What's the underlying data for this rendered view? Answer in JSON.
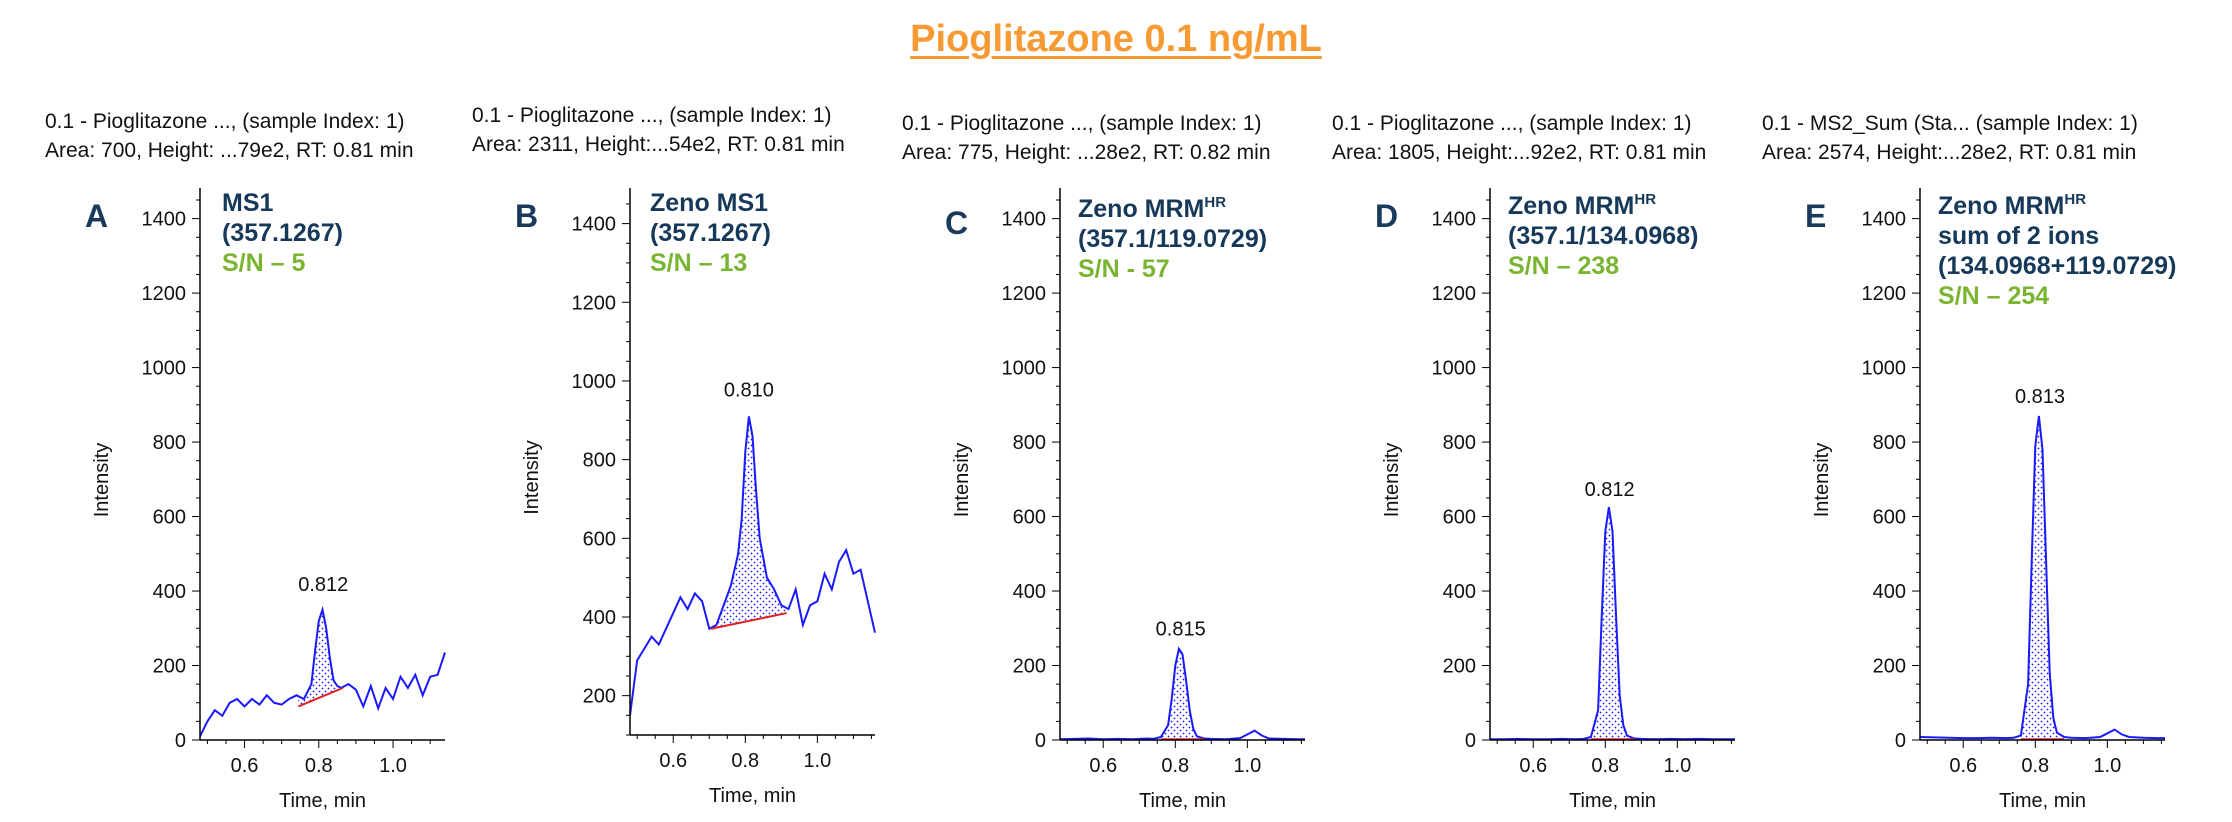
{
  "title": "Pioglitazone 0.1 ng/mL",
  "chart_data": [
    {
      "type": "line",
      "panel_letter": "A",
      "header": [
        "0.1 - Pioglitazone ..., (sample Index: 1)",
        "Area: 700, Height: ...79e2, RT: 0.81 min"
      ],
      "annotation": [
        {
          "text": "MS1"
        },
        {
          "text": "(357.1267)"
        }
      ],
      "sn": "S/N – 5",
      "xlabel": "Time, min",
      "ylabel": "Intensity",
      "xlim": [
        0.48,
        1.14
      ],
      "ylim": [
        0,
        1450
      ],
      "xticks": [
        0.6,
        0.8,
        1.0
      ],
      "xtick_labels": [
        "0.6",
        "0.8",
        "1.0"
      ],
      "yticks": [
        0,
        200,
        400,
        600,
        800,
        1000,
        1200,
        1400
      ],
      "ytick_labels": [
        "0",
        "200",
        "400",
        "600",
        "800",
        "1000",
        "1200",
        "1400"
      ],
      "peak_label": "0.812",
      "peak_label_x": 0.812,
      "peak_label_y": 400,
      "integration": {
        "start": [
          0.745,
          90
        ],
        "end": [
          0.865,
          140
        ]
      },
      "x": [
        0.48,
        0.5,
        0.52,
        0.54,
        0.56,
        0.58,
        0.6,
        0.62,
        0.64,
        0.66,
        0.68,
        0.7,
        0.72,
        0.74,
        0.76,
        0.78,
        0.79,
        0.8,
        0.81,
        0.82,
        0.83,
        0.84,
        0.85,
        0.86,
        0.88,
        0.9,
        0.92,
        0.94,
        0.96,
        0.98,
        1.0,
        1.02,
        1.04,
        1.06,
        1.08,
        1.1,
        1.12,
        1.14
      ],
      "y": [
        10,
        50,
        80,
        65,
        100,
        110,
        90,
        110,
        95,
        120,
        100,
        95,
        110,
        120,
        110,
        150,
        240,
        320,
        350,
        300,
        220,
        160,
        145,
        140,
        150,
        135,
        90,
        145,
        85,
        140,
        110,
        170,
        140,
        175,
        120,
        170,
        175,
        235
      ],
      "peak_fill_range": [
        0.745,
        0.865
      ]
    },
    {
      "type": "line",
      "panel_letter": "B",
      "header": [
        "0.1 - Pioglitazone ..., (sample Index: 1)",
        "Area: 2311, Height:...54e2, RT: 0.81 min"
      ],
      "annotation": [
        {
          "text": "Zeno MS1"
        },
        {
          "text": "(357.1267)"
        }
      ],
      "sn": "S/N – 13",
      "xlabel": "Time, min",
      "ylabel": "Intensity",
      "xlim": [
        0.48,
        1.16
      ],
      "ylim": [
        100,
        1460
      ],
      "xticks": [
        0.6,
        0.8,
        1.0
      ],
      "xtick_labels": [
        "0.6",
        "0.8",
        "1.0"
      ],
      "yticks": [
        200,
        400,
        600,
        800,
        1000,
        1200,
        1400
      ],
      "ytick_labels": [
        "200",
        "400",
        "600",
        "800",
        "1000",
        "1200",
        "1400"
      ],
      "peak_label": "0.810",
      "peak_label_x": 0.81,
      "peak_label_y": 960,
      "integration": {
        "start": [
          0.705,
          370
        ],
        "end": [
          0.915,
          410
        ]
      },
      "x": [
        0.48,
        0.5,
        0.52,
        0.54,
        0.56,
        0.58,
        0.6,
        0.62,
        0.64,
        0.66,
        0.68,
        0.7,
        0.72,
        0.74,
        0.76,
        0.78,
        0.79,
        0.8,
        0.81,
        0.82,
        0.83,
        0.84,
        0.86,
        0.88,
        0.9,
        0.92,
        0.94,
        0.96,
        0.98,
        1.0,
        1.02,
        1.04,
        1.06,
        1.08,
        1.1,
        1.12,
        1.14,
        1.16
      ],
      "y": [
        150,
        290,
        320,
        350,
        330,
        370,
        410,
        450,
        420,
        460,
        440,
        370,
        380,
        430,
        480,
        560,
        650,
        820,
        910,
        860,
        720,
        600,
        500,
        470,
        430,
        420,
        470,
        380,
        430,
        440,
        510,
        470,
        540,
        570,
        510,
        520,
        440,
        360
      ],
      "peak_fill_range": [
        0.705,
        0.915
      ]
    },
    {
      "type": "line",
      "panel_letter": "C",
      "header": [
        "0.1 - Pioglitazone ..., (sample Index: 1)",
        "Area: 775, Height: ...28e2, RT: 0.82 min"
      ],
      "annotation": [
        {
          "text": "Zeno MRM",
          "sup": "HR"
        },
        {
          "text": "(357.1/119.0729)"
        }
      ],
      "sn": "S/N - 57",
      "xlabel": "Time, min",
      "ylabel": "Intensity",
      "xlim": [
        0.48,
        1.16
      ],
      "ylim": [
        0,
        1450
      ],
      "xticks": [
        0.6,
        0.8,
        1.0
      ],
      "xtick_labels": [
        "0.6",
        "0.8",
        "1.0"
      ],
      "yticks": [
        0,
        200,
        400,
        600,
        800,
        1000,
        1200,
        1400
      ],
      "ytick_labels": [
        "0",
        "200",
        "400",
        "600",
        "800",
        "1000",
        "1200",
        "1400"
      ],
      "peak_label": "0.815",
      "peak_label_x": 0.815,
      "peak_label_y": 280,
      "integration": {
        "start": [
          0.76,
          2
        ],
        "end": [
          0.88,
          2
        ]
      },
      "x": [
        0.48,
        0.52,
        0.56,
        0.6,
        0.64,
        0.68,
        0.72,
        0.74,
        0.76,
        0.78,
        0.79,
        0.8,
        0.81,
        0.82,
        0.83,
        0.84,
        0.85,
        0.86,
        0.88,
        0.9,
        0.94,
        0.98,
        1.0,
        1.02,
        1.04,
        1.06,
        1.1,
        1.14,
        1.16
      ],
      "y": [
        2,
        3,
        4,
        2,
        3,
        2,
        4,
        3,
        8,
        40,
        110,
        200,
        245,
        230,
        160,
        80,
        30,
        10,
        4,
        3,
        2,
        5,
        15,
        25,
        12,
        4,
        3,
        2,
        2
      ],
      "peak_fill_range": [
        0.76,
        0.88
      ]
    },
    {
      "type": "line",
      "panel_letter": "D",
      "header": [
        "0.1 - Pioglitazone ..., (sample Index: 1)",
        "Area: 1805, Height:...92e2, RT: 0.81 min"
      ],
      "annotation": [
        {
          "text": "Zeno MRM",
          "sup": "HR"
        },
        {
          "text": "(357.1/134.0968)"
        }
      ],
      "sn": "S/N – 238",
      "xlabel": "Time, min",
      "ylabel": "Intensity",
      "xlim": [
        0.48,
        1.16
      ],
      "ylim": [
        0,
        1450
      ],
      "xticks": [
        0.6,
        0.8,
        1.0
      ],
      "xtick_labels": [
        "0.6",
        "0.8",
        "1.0"
      ],
      "yticks": [
        0,
        200,
        400,
        600,
        800,
        1000,
        1200,
        1400
      ],
      "ytick_labels": [
        "0",
        "200",
        "400",
        "600",
        "800",
        "1000",
        "1200",
        "1400"
      ],
      "peak_label": "0.812",
      "peak_label_x": 0.812,
      "peak_label_y": 655,
      "integration": {
        "start": [
          0.76,
          2
        ],
        "end": [
          0.88,
          2
        ]
      },
      "x": [
        0.48,
        0.52,
        0.56,
        0.6,
        0.64,
        0.68,
        0.72,
        0.74,
        0.76,
        0.78,
        0.79,
        0.8,
        0.81,
        0.82,
        0.83,
        0.84,
        0.85,
        0.86,
        0.88,
        0.9,
        0.94,
        0.98,
        1.02,
        1.06,
        1.1,
        1.14,
        1.16
      ],
      "y": [
        2,
        2,
        3,
        2,
        2,
        3,
        2,
        3,
        8,
        80,
        330,
        560,
        625,
        560,
        330,
        120,
        40,
        12,
        4,
        3,
        2,
        3,
        2,
        3,
        2,
        2,
        2
      ],
      "peak_fill_range": [
        0.76,
        0.88
      ]
    },
    {
      "type": "line",
      "panel_letter": "E",
      "header": [
        "0.1 - MS2_Sum (Sta... (sample Index: 1)",
        "Area: 2574, Height:...28e2, RT: 0.81 min"
      ],
      "annotation": [
        {
          "text": "Zeno MRM",
          "sup": "HR"
        },
        {
          "text": "sum of 2 ions"
        },
        {
          "text": "(134.0968+119.0729)"
        }
      ],
      "sn": "S/N – 254",
      "xlabel": "Time, min",
      "ylabel": "Intensity",
      "xlim": [
        0.48,
        1.16
      ],
      "ylim": [
        0,
        1450
      ],
      "xticks": [
        0.6,
        0.8,
        1.0
      ],
      "xtick_labels": [
        "0.6",
        "0.8",
        "1.0"
      ],
      "yticks": [
        0,
        200,
        400,
        600,
        800,
        1000,
        1200,
        1400
      ],
      "ytick_labels": [
        "0",
        "200",
        "400",
        "600",
        "800",
        "1000",
        "1200",
        "1400"
      ],
      "peak_label": "0.813",
      "peak_label_x": 0.813,
      "peak_label_y": 905,
      "integration": {
        "start": [
          0.76,
          2
        ],
        "end": [
          0.88,
          2
        ]
      },
      "x": [
        0.48,
        0.52,
        0.56,
        0.6,
        0.64,
        0.68,
        0.72,
        0.74,
        0.76,
        0.78,
        0.79,
        0.8,
        0.81,
        0.82,
        0.83,
        0.84,
        0.85,
        0.86,
        0.88,
        0.9,
        0.94,
        0.98,
        1.0,
        1.02,
        1.04,
        1.06,
        1.1,
        1.14,
        1.16
      ],
      "y": [
        8,
        7,
        6,
        5,
        5,
        6,
        5,
        6,
        12,
        150,
        480,
        790,
        870,
        780,
        480,
        180,
        60,
        20,
        8,
        6,
        5,
        8,
        18,
        28,
        15,
        8,
        6,
        5,
        5
      ],
      "peak_fill_range": [
        0.76,
        0.88
      ]
    }
  ],
  "colors": {
    "title": "#f79a33",
    "annotation": "#16395a",
    "sn": "#7ab532",
    "trace": "#1a1aff",
    "baseline": "#e02020",
    "letter": "#1a3a5c"
  }
}
